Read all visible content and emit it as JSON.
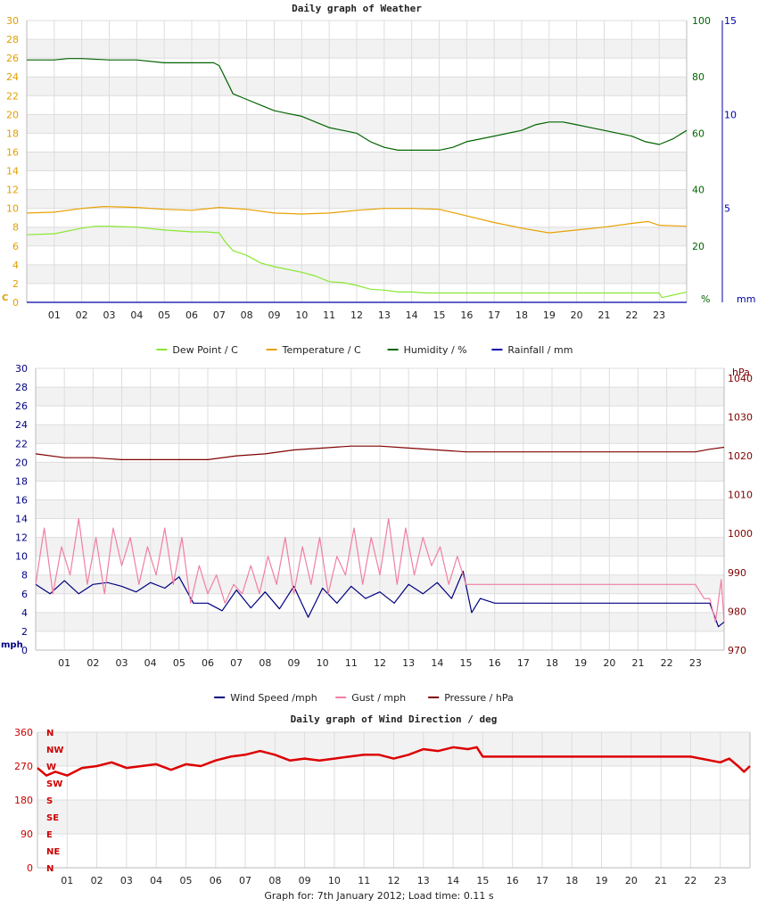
{
  "footer": "Graph for: 7th January 2012; Load time: 0.11 s",
  "hours": [
    "01",
    "02",
    "03",
    "04",
    "05",
    "06",
    "07",
    "08",
    "09",
    "10",
    "11",
    "12",
    "13",
    "14",
    "15",
    "16",
    "17",
    "18",
    "19",
    "20",
    "21",
    "22",
    "23"
  ],
  "chart_data": [
    {
      "type": "line",
      "title": "Daily graph of Weather",
      "xlabel": "",
      "x_unit": "hour",
      "x_range": [
        0,
        24
      ],
      "grid": true,
      "legend_position": "bottom",
      "left_axis": {
        "label": "C",
        "range": [
          0,
          30
        ],
        "ticks": [
          0,
          2,
          4,
          6,
          8,
          10,
          12,
          14,
          16,
          18,
          20,
          22,
          24,
          26,
          28,
          30
        ],
        "color": "#e0a000"
      },
      "right_axes": [
        {
          "label": "%",
          "range": [
            0,
            100
          ],
          "ticks": [
            0,
            20,
            40,
            60,
            80,
            100
          ],
          "color": "#006400"
        },
        {
          "label": "mm",
          "range": [
            0,
            15
          ],
          "ticks": [
            0,
            5,
            10,
            15
          ],
          "color": "#0000aa"
        }
      ],
      "series": [
        {
          "name": "Dew Point / C",
          "color": "#88e830",
          "axis": "left",
          "x": [
            0,
            1,
            2,
            2.5,
            3,
            4,
            5,
            6,
            6.5,
            7,
            7.2,
            7.5,
            8,
            8.5,
            9,
            10,
            10.5,
            11,
            11.5,
            12,
            12.5,
            13,
            13.5,
            14,
            14.5,
            15,
            16,
            17,
            18,
            19,
            20,
            21,
            22,
            23,
            23.1,
            24
          ],
          "y": [
            7.2,
            7.3,
            7.9,
            8.1,
            8.1,
            8.0,
            7.7,
            7.5,
            7.5,
            7.4,
            6.5,
            5.5,
            5.0,
            4.2,
            3.8,
            3.2,
            2.8,
            2.2,
            2.1,
            1.8,
            1.4,
            1.3,
            1.1,
            1.1,
            1.0,
            1.0,
            1.0,
            1.0,
            1.0,
            1.0,
            1.0,
            1.0,
            1.0,
            1.0,
            0.5,
            1.1
          ]
        },
        {
          "name": "Temperature / C",
          "color": "#e8a000",
          "axis": "left",
          "x": [
            0,
            1,
            2,
            2.8,
            4,
            5,
            6,
            7,
            8,
            9,
            10,
            11,
            12,
            13,
            14,
            15,
            16,
            17,
            18,
            19,
            20,
            21,
            22,
            22.6,
            23,
            24
          ],
          "y": [
            9.5,
            9.6,
            10.0,
            10.2,
            10.1,
            9.9,
            9.8,
            10.1,
            9.9,
            9.5,
            9.4,
            9.5,
            9.8,
            10.0,
            10.0,
            9.9,
            9.2,
            8.5,
            7.9,
            7.4,
            7.7,
            8.0,
            8.4,
            8.6,
            8.2,
            8.1
          ]
        },
        {
          "name": "Humidity / %",
          "color": "#006400",
          "axis": "right0",
          "x": [
            0,
            1,
            1.5,
            2,
            3,
            4,
            5,
            6,
            6.8,
            7,
            7.2,
            7.5,
            8,
            8.5,
            9,
            9.5,
            10,
            10.5,
            11,
            11.5,
            12,
            12.5,
            13,
            13.5,
            14,
            15,
            15.5,
            16,
            17,
            18,
            18.5,
            19,
            19.5,
            20,
            20.5,
            21,
            21.5,
            22,
            22.5,
            23,
            23.5,
            24
          ],
          "y": [
            86,
            86,
            86.5,
            86.5,
            86,
            86,
            85,
            85,
            85,
            84,
            80,
            74,
            72,
            70,
            68,
            67,
            66,
            64,
            62,
            61,
            60,
            57,
            55,
            54,
            54,
            54,
            55,
            57,
            59,
            61,
            63,
            64,
            64,
            63,
            62,
            61,
            60,
            59,
            57,
            56,
            58,
            61
          ]
        },
        {
          "name": "Rainfall / mm",
          "color": "#0000aa",
          "axis": "right1",
          "x": [
            0,
            24
          ],
          "y": [
            0,
            0
          ]
        }
      ]
    },
    {
      "type": "line",
      "title": "",
      "x_unit": "hour",
      "x_range": [
        0,
        24
      ],
      "grid": true,
      "legend_position": "bottom",
      "left_axis": {
        "label": "mph",
        "range": [
          0,
          30
        ],
        "ticks": [
          0,
          2,
          4,
          6,
          8,
          10,
          12,
          14,
          16,
          18,
          20,
          22,
          24,
          26,
          28,
          30
        ],
        "color": "#000080"
      },
      "right_axes": [
        {
          "label": "hPa",
          "range": [
            970,
            1042.5
          ],
          "ticks": [
            970,
            980,
            990,
            1000,
            1010,
            1020,
            1030,
            1040
          ],
          "color": "#800000"
        }
      ],
      "series": [
        {
          "name": "Wind Speed /mph",
          "color": "#000080",
          "axis": "left",
          "x": [
            0,
            0.5,
            1,
            1.5,
            2,
            2.5,
            3,
            3.5,
            4,
            4.5,
            5,
            5.5,
            6,
            6.5,
            7,
            7.5,
            8,
            8.5,
            9,
            9.5,
            10,
            10.5,
            11,
            11.5,
            12,
            12.5,
            13,
            13.5,
            14,
            14.5,
            14.9,
            15.2,
            15.5,
            16,
            17,
            18,
            19,
            20,
            21,
            22,
            23,
            23.5,
            23.8,
            24
          ],
          "y": [
            7.0,
            6.0,
            7.4,
            6.0,
            7.0,
            7.2,
            6.8,
            6.2,
            7.2,
            6.6,
            7.8,
            5.0,
            5.0,
            4.2,
            6.4,
            4.5,
            6.2,
            4.4,
            6.8,
            3.5,
            6.6,
            5.0,
            6.8,
            5.5,
            6.2,
            5.0,
            7.0,
            6.0,
            7.2,
            5.5,
            8.4,
            4.0,
            5.5,
            5.0,
            5.0,
            5.0,
            5.0,
            5.0,
            5.0,
            5.0,
            5.0,
            5.0,
            2.5,
            3.0
          ]
        },
        {
          "name": "Gust / mph",
          "color": "#f080a0",
          "axis": "left",
          "x": [
            0,
            0.3,
            0.6,
            0.9,
            1.2,
            1.5,
            1.8,
            2.1,
            2.4,
            2.7,
            3.0,
            3.3,
            3.6,
            3.9,
            4.2,
            4.5,
            4.8,
            5.1,
            5.4,
            5.7,
            6.0,
            6.3,
            6.6,
            6.9,
            7.2,
            7.5,
            7.8,
            8.1,
            8.4,
            8.7,
            9.0,
            9.3,
            9.6,
            9.9,
            10.2,
            10.5,
            10.8,
            11.1,
            11.4,
            11.7,
            12.0,
            12.3,
            12.6,
            12.9,
            13.2,
            13.5,
            13.8,
            14.1,
            14.4,
            14.7,
            15.0,
            15.3,
            16,
            17,
            18,
            19,
            20,
            21,
            22,
            23,
            23.3,
            23.5,
            23.7,
            23.9,
            24
          ],
          "y": [
            7,
            13,
            6,
            11,
            8,
            14,
            7,
            12,
            6,
            13,
            9,
            12,
            7,
            11,
            8,
            13,
            7,
            12,
            5,
            9,
            6,
            8,
            5,
            7,
            6,
            9,
            6,
            10,
            7,
            12,
            6,
            11,
            7,
            12,
            6,
            10,
            8,
            13,
            7,
            12,
            8,
            14,
            7,
            13,
            8,
            12,
            9,
            11,
            7,
            10,
            7,
            7,
            7,
            7,
            7,
            7,
            7,
            7,
            7,
            7,
            5.5,
            5.5,
            3,
            7.5,
            3
          ]
        },
        {
          "name": "Pressure / hPa",
          "color": "#800000",
          "axis": "right0",
          "x": [
            0,
            1,
            2,
            3,
            4,
            5,
            6,
            7,
            8,
            9,
            10,
            11,
            12,
            13,
            14,
            15,
            16,
            17,
            18,
            19,
            20,
            21,
            22,
            23,
            23.5,
            24
          ],
          "y": [
            1020.5,
            1019.5,
            1019.5,
            1019,
            1019,
            1019,
            1019,
            1020,
            1020.5,
            1021.5,
            1022,
            1022.5,
            1022.5,
            1022,
            1021.5,
            1021,
            1021,
            1021,
            1021,
            1021,
            1021,
            1021,
            1021,
            1021,
            1021.7,
            1022.2
          ]
        }
      ]
    },
    {
      "type": "line",
      "title": "Daily graph of Wind Direction / deg",
      "x_unit": "hour",
      "x_range": [
        0,
        24
      ],
      "grid": true,
      "left_axis": {
        "label": "",
        "range": [
          0,
          360
        ],
        "ticks": [
          0,
          90,
          180,
          270,
          360
        ],
        "color": "#cc0000"
      },
      "compass_labels": [
        "N",
        "NW",
        "W",
        "SW",
        "S",
        "SE",
        "E",
        "NE",
        "N"
      ],
      "series": [
        {
          "name": "Wind Direction",
          "color": "#dd0000",
          "axis": "left",
          "x": [
            0,
            0.3,
            0.6,
            1,
            1.5,
            2,
            2.5,
            3,
            3.5,
            4,
            4.5,
            5,
            5.5,
            6,
            6.5,
            7,
            7.5,
            8,
            8.5,
            9,
            9.5,
            10,
            10.5,
            11,
            11.5,
            12,
            12.5,
            13,
            13.5,
            14,
            14.5,
            14.8,
            15,
            16,
            17,
            18,
            19,
            20,
            21,
            22,
            23,
            23.3,
            23.6,
            23.8,
            24
          ],
          "y": [
            265,
            245,
            255,
            245,
            265,
            270,
            280,
            265,
            270,
            275,
            260,
            275,
            270,
            285,
            295,
            300,
            310,
            300,
            285,
            290,
            285,
            290,
            295,
            300,
            300,
            290,
            300,
            315,
            310,
            320,
            315,
            320,
            295,
            295,
            295,
            295,
            295,
            295,
            295,
            295,
            280,
            290,
            270,
            255,
            270
          ]
        }
      ]
    }
  ],
  "legends": [
    [
      {
        "label": "Dew Point / C",
        "color": "#88e830"
      },
      {
        "label": "Temperature / C",
        "color": "#e8a000"
      },
      {
        "label": "Humidity / %",
        "color": "#006400"
      },
      {
        "label": "Rainfall / mm",
        "color": "#0000aa"
      }
    ],
    [
      {
        "label": "Wind Speed /mph",
        "color": "#000080"
      },
      {
        "label": "Gust / mph",
        "color": "#f080a0"
      },
      {
        "label": "Pressure / hPa",
        "color": "#800000"
      }
    ]
  ]
}
